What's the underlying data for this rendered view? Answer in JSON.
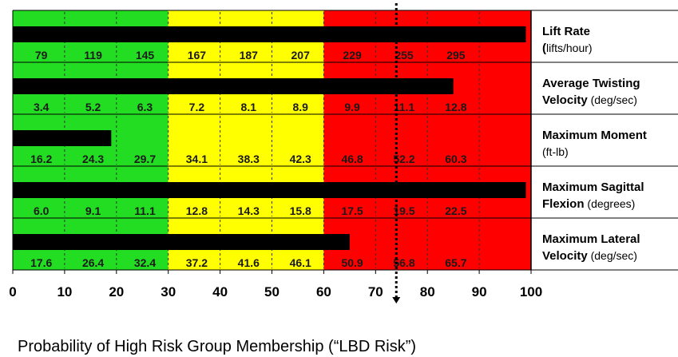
{
  "chart_data": {
    "type": "bar",
    "orientation": "horizontal",
    "xlim": [
      0,
      100
    ],
    "x_ticks": [
      "0",
      "10",
      "20",
      "30",
      "40",
      "50",
      "60",
      "70",
      "80",
      "90",
      "100"
    ],
    "xlabel": "Probability of High Risk Group Membership (“LBD Risk”)",
    "zones": [
      {
        "from": 0,
        "to": 30,
        "color": "#22dd22"
      },
      {
        "from": 30,
        "to": 60,
        "color": "#ffff00"
      },
      {
        "from": 60,
        "to": 100,
        "color": "#ff0000"
      }
    ],
    "scale_markers": [
      0,
      10,
      20,
      30,
      40,
      50,
      60,
      70,
      80,
      90,
      100
    ],
    "threshold": 74,
    "bar_color": "#000000",
    "rows": [
      {
        "label_bold": "Lift Rate",
        "label_lines": [
          [
            {
              "t": "Lift Rate",
              "b": true
            }
          ],
          [
            {
              "t": "(",
              "b": true
            },
            {
              "t": "lifts/hour)",
              "b": false
            }
          ]
        ],
        "value": 99,
        "scale_values": [
          "79",
          "119",
          "145",
          "167",
          "187",
          "207",
          "229",
          "255",
          "295"
        ]
      },
      {
        "label_bold": "Average Twisting Velocity",
        "label_lines": [
          [
            {
              "t": "Average Twisting",
              "b": true
            }
          ],
          [
            {
              "t": "Velocity",
              "b": true
            },
            {
              "t": " (deg/sec)",
              "b": false
            }
          ]
        ],
        "value": 85,
        "scale_values": [
          "3.4",
          "5.2",
          "6.3",
          "7.2",
          "8.1",
          "8.9",
          "9.9",
          "11.1",
          "12.8"
        ]
      },
      {
        "label_bold": "Maximum Moment",
        "label_lines": [
          [
            {
              "t": "Maximum Moment",
              "b": true
            }
          ],
          [
            {
              "t": "(ft-lb)",
              "b": false
            }
          ]
        ],
        "value": 19,
        "scale_values": [
          "16.2",
          "24.3",
          "29.7",
          "34.1",
          "38.3",
          "42.3",
          "46.8",
          "52.2",
          "60.3"
        ]
      },
      {
        "label_bold": "Maximum Sagittal Flexion",
        "label_lines": [
          [
            {
              "t": "Maximum Sagittal",
              "b": true
            }
          ],
          [
            {
              "t": "Flexion",
              "b": true
            },
            {
              "t": " (degrees)",
              "b": false
            }
          ]
        ],
        "value": 99,
        "scale_values": [
          "6.0",
          "9.1",
          "11.1",
          "12.8",
          "14.3",
          "15.8",
          "17.5",
          "19.5",
          "22.5"
        ]
      },
      {
        "label_bold": "Maximum Lateral Velocity",
        "label_lines": [
          [
            {
              "t": "Maximum Lateral",
              "b": true
            }
          ],
          [
            {
              "t": "Velocity",
              "b": true
            },
            {
              "t": " (deg/sec)",
              "b": false
            }
          ]
        ],
        "value": 65,
        "scale_values": [
          "17.6",
          "26.4",
          "32.4",
          "37.2",
          "41.6",
          "46.1",
          "50.9",
          "56.8",
          "65.7"
        ]
      }
    ]
  }
}
